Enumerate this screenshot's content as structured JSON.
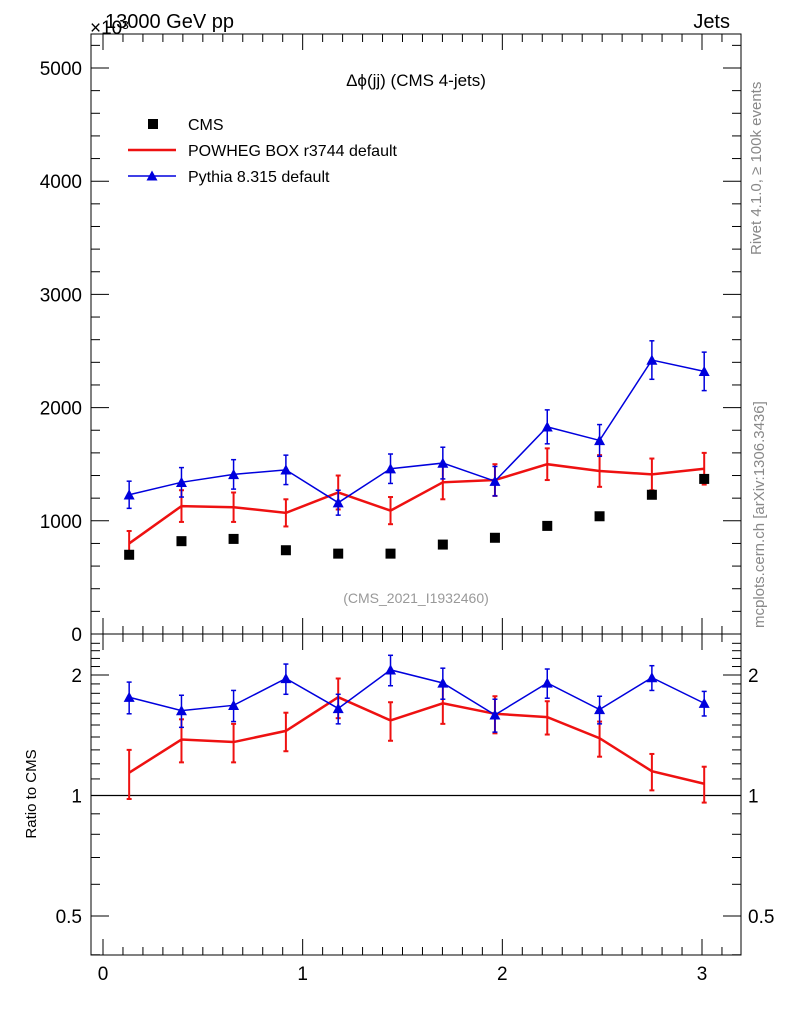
{
  "header": {
    "energy_label": "13000 GeV pp",
    "process_label": "Jets",
    "exponent_label": "×10³",
    "side_label_top": "Rivet 4.1.0, ≥ 100k events",
    "side_label_bottom": "mcplots.cern.ch [arXiv:1306.3436]",
    "watermark": "(CMS_2021_I1932460)"
  },
  "legend": {
    "title": "Δϕ(jj) (CMS 4-jets)",
    "entries": [
      "CMS",
      "POWHEG BOX r3744 default",
      "Pythia 8.315 default"
    ]
  },
  "colors": {
    "data": "#000000",
    "powheg": "#ee1111",
    "pythia": "#0000dd",
    "axis": "#000000",
    "watermark": "#999999",
    "side_label": "#888888"
  },
  "chart_data": [
    {
      "type": "scatter",
      "panel": "main",
      "title": "Δϕ(jj) (CMS 4-jets)",
      "xlabel": "",
      "ylabel": "",
      "xlim": [
        -0.05,
        3.25
      ],
      "ylim": [
        0,
        5300
      ],
      "y_scale_note": "×10³",
      "x_ticks": [
        0,
        1,
        2,
        3
      ],
      "x_tick_labels": [
        "0",
        "1",
        "2",
        "3"
      ],
      "y_ticks": [
        0,
        1000,
        2000,
        3000,
        4000,
        5000
      ],
      "y_tick_labels": [
        "0",
        "1000",
        "2000",
        "3000",
        "4000",
        "5000"
      ],
      "x": [
        0.131,
        0.393,
        0.654,
        0.916,
        1.178,
        1.44,
        1.702,
        1.963,
        2.225,
        2.487,
        2.749,
        3.011
      ],
      "series": [
        {
          "name": "CMS",
          "style": "markers",
          "values": [
            700,
            820,
            840,
            740,
            710,
            710,
            790,
            850,
            955,
            1040,
            1230,
            1370
          ],
          "errors": [
            0,
            0,
            0,
            0,
            0,
            0,
            0,
            0,
            0,
            0,
            0,
            0
          ]
        },
        {
          "name": "POWHEG BOX r3744 default",
          "style": "line",
          "values": [
            800,
            1130,
            1120,
            1070,
            1250,
            1090,
            1340,
            1360,
            1500,
            1440,
            1410,
            1460
          ],
          "errors": [
            110,
            140,
            130,
            120,
            150,
            120,
            150,
            140,
            140,
            140,
            140,
            140
          ]
        },
        {
          "name": "Pythia 8.315 default",
          "style": "line-triangles",
          "values": [
            1230,
            1340,
            1410,
            1450,
            1160,
            1460,
            1510,
            1350,
            1830,
            1710,
            2420,
            2320
          ],
          "errors": [
            120,
            130,
            130,
            130,
            110,
            130,
            140,
            130,
            150,
            140,
            170,
            170
          ]
        }
      ]
    },
    {
      "type": "line",
      "panel": "ratio",
      "ylabel": "Ratio to CMS",
      "y_scale": "log",
      "ylim": [
        0.4,
        2.4
      ],
      "y_ticks": [
        0.5,
        1,
        2
      ],
      "y_tick_labels": [
        "0.5",
        "1",
        "2"
      ],
      "reference_line": 1,
      "x": [
        0.131,
        0.393,
        0.654,
        0.916,
        1.178,
        1.44,
        1.702,
        1.963,
        2.225,
        2.487,
        2.749,
        3.011
      ],
      "series": [
        {
          "name": "POWHEG BOX r3744 default",
          "values": [
            1.14,
            1.38,
            1.36,
            1.45,
            1.76,
            1.54,
            1.7,
            1.6,
            1.57,
            1.39,
            1.15,
            1.07
          ],
          "errors": [
            0.16,
            0.17,
            0.15,
            0.16,
            0.2,
            0.17,
            0.19,
            0.17,
            0.15,
            0.14,
            0.12,
            0.11
          ]
        },
        {
          "name": "Pythia 8.315 default",
          "values": [
            1.76,
            1.63,
            1.68,
            1.96,
            1.65,
            2.06,
            1.91,
            1.59,
            1.91,
            1.64,
            1.97,
            1.7
          ],
          "errors": [
            0.16,
            0.15,
            0.15,
            0.17,
            0.14,
            0.18,
            0.17,
            0.15,
            0.16,
            0.13,
            0.14,
            0.12
          ]
        }
      ]
    }
  ]
}
